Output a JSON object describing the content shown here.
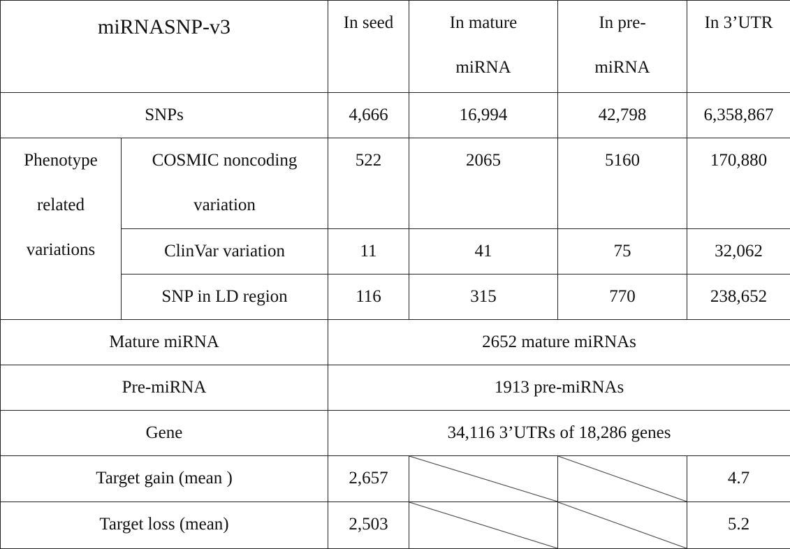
{
  "table": {
    "title": "miRNASNP-v3",
    "columns": [
      "In seed",
      "In mature miRNA",
      "In pre-miRNA",
      "In 3’UTR"
    ],
    "column_lines": [
      [
        "In seed"
      ],
      [
        "In mature",
        "miRNA"
      ],
      [
        "In pre-",
        "miRNA"
      ],
      [
        "In 3’UTR"
      ]
    ],
    "snps": {
      "label": "SNPs",
      "values": [
        "4,666",
        "16,994",
        "42,798",
        "6,358,867"
      ]
    },
    "phenotype_group": {
      "label_lines": [
        "Phenotype",
        "related",
        "variations"
      ],
      "rows": [
        {
          "label_lines": [
            "COSMIC noncoding",
            "variation"
          ],
          "values": [
            "522",
            "2065",
            "5160",
            "170,880"
          ]
        },
        {
          "label_lines": [
            "ClinVar variation"
          ],
          "values": [
            "11",
            "41",
            "75",
            "32,062"
          ]
        },
        {
          "label_lines": [
            "SNP in LD region"
          ],
          "values": [
            "116",
            "315",
            "770",
            "238,652"
          ]
        }
      ]
    },
    "mature_mirna": {
      "label": "Mature miRNA",
      "value": "2652 mature miRNAs"
    },
    "pre_mirna": {
      "label": "Pre-miRNA",
      "value": "1913 pre-miRNAs"
    },
    "gene": {
      "label": "Gene",
      "value": "34,116 3’UTRs of 18,286 genes"
    },
    "target_gain": {
      "label": "Target gain (mean )",
      "seed": "2,657",
      "utr": "4.7"
    },
    "target_loss": {
      "label": "Target loss (mean)",
      "seed": "2,503",
      "utr": "5.2"
    }
  }
}
